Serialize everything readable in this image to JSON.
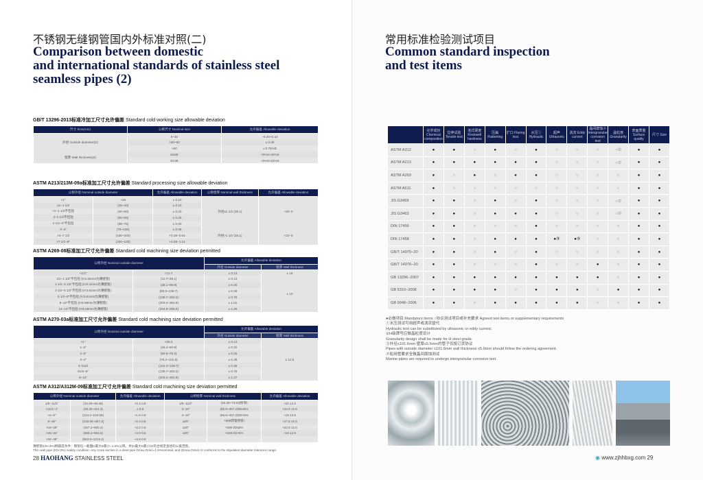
{
  "left": {
    "title_cn": "不锈钢无缝钢管国内外标准对照(二)",
    "title_en": [
      "Comparison between domestic",
      "and international standards of stainless steel",
      "seamless pipes (2)"
    ],
    "sections": [
      {
        "code": "GB/T 13296-2013标准冷加工尺寸允许偏差",
        "title": "Standard cold working size allowable deviation",
        "header": [
          [
            "尺寸 Size(mm)",
            "公称尺寸 Nominal size",
            "允许偏差 Allowable deviation"
          ]
        ],
        "rows": [
          [
            "外径 Outside diameter(D)",
            "6~30",
            "−0.20+0.15"
          ],
          [
            "",
            "&gt;30~50",
            "± 0.30"
          ],
          [
            "",
            ">50",
            "± 0.75%D"
          ],
          [
            "壁厚 Wall thickness(S)",
            "D≤38",
            "−0%S+20%S"
          ],
          [
            "",
            "D<38",
            "−0%S+22%S"
          ]
        ]
      },
      {
        "code": "ASTM A213/213M-09a标准加工尺寸允许偏差",
        "title": "Standard processing size allowable deviation",
        "header": [
          [
            "公称外径 Nominal outside diameter",
            "",
            "允许偏差 Allowable deviation",
            "公称壁厚 Nominal wall thickness",
            "允许偏差 Allowable deviation"
          ]
        ],
        "rows": [
          [
            "<1\"",
            "<25",
            "± 0.10",
            "",
            ""
          ],
          [
            "≥1−1 1/2",
            "(25~40)",
            "± 0.10",
            "外径≤1 1/2 (38.1)",
            "+20−0"
          ],
          [
            "&gt;1−1 1/2不包括",
            "(40~50)",
            "± 0.20",
            "",
            ""
          ],
          [
            "2−2 1/2不包括",
            "(50~65)",
            "± 0.25",
            "",
            ""
          ],
          [
            "2 1/2−3\"不包括",
            "(65~75)",
            "± 0.30",
            "",
            ""
          ],
          [
            "3−4\"",
            "(75~100)",
            "± 0.38",
            "外径>1 1/2 (38.1)",
            "+22−0"
          ],
          [
            ">4−7 1/2",
            "(100~200)",
            "+0.38−0.64",
            "",
            ""
          ],
          [
            ">7 1/2−9\"",
            "(200~225)",
            "+0.38−1.14",
            "",
            ""
          ]
        ]
      },
      {
        "code": "ASTM A269-08标准加工尺寸允许偏差",
        "title": "Standard cold machining size deviation permitted",
        "header": [
          [
            "公称外径 Nominal outside diameter",
            "",
            "允许偏差 Allowable deviation",
            ""
          ],
          [
            "",
            "",
            "外径 Outside diameter",
            "壁厚 Wall thickness"
          ]
        ],
        "rows": [
          [
            "<1/2\"",
            "<12.7",
            "± 0.13",
            "± 15"
          ],
          [
            "1/2−1 1/2\"不包括 (t<1.65mm为薄壁管)",
            "(12.7~38.1)",
            "± 0.13",
            ""
          ],
          [
            "1 1/2−3 1/2\"不包括 (t<2.41mm为薄壁管)",
            "(38.1~88.9)",
            "± 0.25",
            ""
          ],
          [
            "3 1/2−5 1/2\"不包括 (t<3.81mm为薄壁管)",
            "(88.9~139.7)",
            "± 0.38",
            "± 10"
          ],
          [
            "5 1/2−8\"不包括 (t<3.81mm为薄壁管)",
            "(139.7~203.2)",
            "± 0.76",
            ""
          ],
          [
            "8−12\"不包括 (t<5.08mm为薄壁管)",
            "(203.2~304.8)",
            "± 1.01",
            ""
          ],
          [
            "12−14\"不包括 (t<5.59mm为薄壁管)",
            "(304.8~355.6)",
            "± 1.26",
            ""
          ]
        ]
      },
      {
        "code": "ASTM A270-03a标准加工尺寸允许偏差",
        "title": "Standard cold machining size deviation permitted",
        "header": [
          [
            "公称外径 Nominal outside diameter",
            "",
            "允许偏差 Allowable deviation",
            ""
          ],
          [
            "",
            "",
            "外径 Outside diameter",
            "壁厚 Wall thickness"
          ]
        ],
        "rows": [
          [
            "<1\"",
            "<25.4",
            "± 0.13",
            ""
          ],
          [
            "1−2\"",
            "(25.4~50.8)",
            "± 0.20",
            ""
          ],
          [
            "2−3\"",
            "(50.8~76.2)",
            "± 0.25",
            ""
          ],
          [
            "3−4\"",
            "(76.2~101.6)",
            "± 0.38",
            "± 12.5"
          ],
          [
            "4−51/2",
            "(101.3~139.7)",
            "± 0.38",
            ""
          ],
          [
            "51/2−8\"",
            "(139.7~203.2)",
            "± 0.76",
            ""
          ],
          [
            "8−12\"",
            "(203.2~304.8)",
            "± 1.27",
            ""
          ]
        ]
      },
      {
        "code": "ASTM A312/A312M-09标准加工尺寸允许偏差",
        "title": "Standard cold machining size deviation permitted",
        "header": [
          [
            "公称外径 Nominal outside diameter",
            "",
            "允许偏差 Allowable deviation",
            "公称壁厚 Nominal wall thickness",
            "",
            "允许偏差 Allowable deviation"
          ]
        ],
        "rows": [
          [
            "1/8−11/2\"",
            "(10.29~48.26)",
            "+0.4  0.8",
            "1/8−11/2\"",
            "(10.29~73.03)所有t",
            "+20  12.5"
          ],
          [
            ">11/2−4\"",
            "(48.26~114.3)",
            "± 0.8",
            "3−18\"",
            "(88.9~457.2)t/D≤5%",
            "+22.5  12.5"
          ],
          [
            ">4−8\"",
            "(114.3~219.08)",
            "+1.6  0.8",
            "3−18\"",
            "(88.9~457.2)t/D>5%",
            "+15  12.5"
          ],
          [
            "8−18\"",
            "(219.08~457.2)",
            "+2.4  0.8",
            "≥20\"",
            "+508焊管所有t",
            "+17.5  12.5"
          ],
          [
            ">18−26\"",
            "(457.2~660.4)",
            "+3.2  0.8",
            "≥20\"",
            "+508 t/D≤5%",
            "+22.5  12.5"
          ],
          [
            ">26−34\"",
            "(660.4~863.6)",
            "+4.0  0.8",
            "≥20\"",
            "+508 t/D>5%",
            "+15  12.5"
          ],
          [
            ">34−48\"",
            "(863.6~1219.2)",
            "+4.8  0.8",
            "",
            "",
            ""
          ]
        ],
        "notes": [
          "薄壁管(t/D<3%)椭圆度条件：钢管任一截面D最大D最小=1.5%公称，并(D最大D最小)/2符合规定直径的公差范围。",
          "Thin wall pipe (t/D<3%) ovality condition: Any cross section in a steel pipe Dmax Dmin=1.5%nominal, and (Dmax Dmin) /2 conforms to the stipulated diameter tolerance range."
        ]
      }
    ],
    "footer": {
      "page": "28",
      "brand": "HAOHANG",
      "sub": "STAINLESS STEEL"
    }
  },
  "right": {
    "title_cn": "常用标准检验测试项目",
    "title_en": [
      "Common standard inspection",
      "and test items"
    ],
    "columns": [
      "化学成份 Chemical composition",
      "拉伸试验 Tensile test",
      "洛式硬度 Rockwell hardness",
      "压扁 Flattening",
      "扩口 Flaring test",
      "水压① Hydraulic",
      "超声 Ultrasonic",
      "涡流 Eddy current",
      "晶间腐蚀④ Intergranular corrosion test",
      "晶粒度 Granularity",
      "表面质量 Surface quality",
      "尺寸 Size"
    ],
    "rows": [
      {
        "std": "ASTM A312",
        "v": [
          "●",
          "●",
          "○",
          "●",
          "○",
          "●",
          "○",
          "○",
          "○",
          "○②",
          "●",
          "●"
        ]
      },
      {
        "std": "ASTM A213",
        "v": [
          "●",
          "●",
          "●",
          "●",
          "●",
          "●",
          "○",
          "○",
          "○",
          "○②",
          "●",
          "●"
        ]
      },
      {
        "std": "ASTM A269",
        "v": [
          "●",
          "○",
          "●",
          "○",
          "●",
          "●",
          "○",
          "○",
          "○",
          "○",
          "●",
          "●"
        ]
      },
      {
        "std": "ASTM A511",
        "v": [
          "●",
          "○",
          "○",
          "○",
          "○",
          "○",
          "○",
          "○",
          "○",
          "○",
          "●",
          "●"
        ]
      },
      {
        "std": "JIS G3459",
        "v": [
          "●",
          "●",
          "○",
          "●",
          "○",
          "●",
          "○",
          "○",
          "○",
          "○②",
          "●",
          "●"
        ]
      },
      {
        "std": "JIS G3463",
        "v": [
          "●",
          "●",
          "○",
          "●",
          "●",
          "●",
          "○",
          "○",
          "○",
          "○②",
          "●",
          "●"
        ]
      },
      {
        "std": "DIN 17456",
        "v": [
          "●",
          "●",
          "○",
          "○",
          "○",
          "●",
          "○",
          "○",
          "○",
          "○",
          "●",
          "●"
        ]
      },
      {
        "std": "DIN 17458",
        "v": [
          "●",
          "●",
          "○",
          "●",
          "●",
          "●",
          "●③",
          "●③",
          "○",
          "○",
          "●",
          "●"
        ]
      },
      {
        "std": "GB/T 14975−20",
        "v": [
          "●",
          "●",
          "○",
          "●",
          "○",
          "●",
          "○",
          "○",
          "○",
          "○",
          "●",
          "●"
        ]
      },
      {
        "std": "GB/T 14976−20",
        "v": [
          "●",
          "●",
          "○",
          "○",
          "○",
          "●",
          "○",
          "○",
          "●",
          "○",
          "●",
          "●"
        ]
      },
      {
        "std": "GB 13296−2007",
        "v": [
          "●",
          "●",
          "●",
          "●",
          "●",
          "●",
          "●",
          "●",
          "●",
          "○",
          "●",
          "●"
        ]
      },
      {
        "std": "GB 5310−2008",
        "v": [
          "●",
          "●",
          "●",
          "●",
          "○",
          "●",
          "●",
          "●",
          "○",
          "●",
          "●",
          "●"
        ]
      },
      {
        "std": "GB 9948−2006",
        "v": [
          "●",
          "●",
          "○",
          "●",
          "●",
          "●",
          "●",
          "●",
          "○",
          "○",
          "●",
          "●"
        ]
      }
    ],
    "legend": [
      "●必做项目 Mandatory items    ○协议测试项目或补充要求 Agreed test items or supplementary requirements",
      "①水压测试可用超声或涡流替代",
      "Hydraulic test can be substituted by ultrasonic or eddy current.",
      "②H级牌号应做晶粒度设计",
      "Granularity design shall be made for H steel grade.",
      "③外径≤101.6mm  壁厚≤5.6mm的管子仅按订货协议",
      "Pipes with outside diameter ≤101.6mm wall thickness ≤5.6mm should follow the ordering agreement.",
      "④船用管要求全做晶间腐蚀测试",
      "Marine pipes are required to undergo intergranular corrosion test."
    ],
    "photos": [
      "coiled-pipe-photo",
      "pipe-bundle-photo",
      "pipe-stack-photo",
      "pipe-rack-photo",
      "industrial-plant-photo"
    ],
    "footer": {
      "url": "www.zjhhbxg.com",
      "page": "29"
    }
  },
  "colors": {
    "navy": "#101c4e",
    "cell": "#e6e6e6"
  }
}
